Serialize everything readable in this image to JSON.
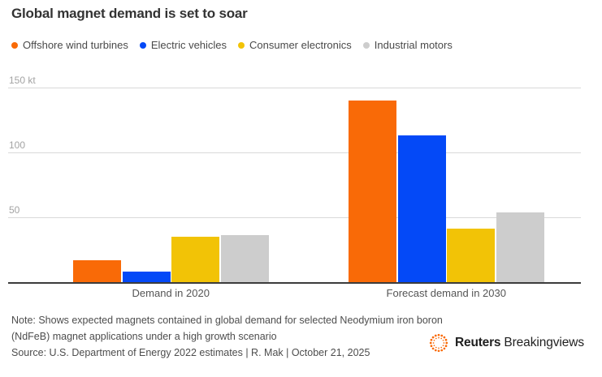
{
  "title": "Global magnet demand is set to soar",
  "legend": [
    {
      "label": "Offshore wind turbines",
      "color": "#f96a07"
    },
    {
      "label": "Electric vehicles",
      "color": "#0449f7"
    },
    {
      "label": "Consumer electronics",
      "color": "#f2c306"
    },
    {
      "label": "Industrial motors",
      "color": "#cdcdcd"
    }
  ],
  "chart_data": {
    "type": "bar",
    "unit": "kt",
    "title": "Global magnet demand is set to soar",
    "categories": [
      "Demand in 2020",
      "Forecast demand in 2030"
    ],
    "series": [
      {
        "name": "Offshore wind turbines",
        "color": "#f96a07",
        "values": [
          17,
          140
        ]
      },
      {
        "name": "Electric vehicles",
        "color": "#0449f7",
        "values": [
          8,
          113
        ]
      },
      {
        "name": "Consumer electronics",
        "color": "#f2c306",
        "values": [
          35,
          41
        ]
      },
      {
        "name": "Industrial motors",
        "color": "#cdcdcd",
        "values": [
          36,
          54
        ]
      }
    ],
    "yticks": [
      {
        "value": 150,
        "label": "150 kt"
      },
      {
        "value": 100,
        "label": "100"
      },
      {
        "value": 50,
        "label": "50"
      }
    ],
    "ylim": [
      0,
      160
    ],
    "grid": true,
    "legend_position": "top"
  },
  "footer": {
    "note_lines": [
      "Note: Shows expected magnets contained in global demand for selected Neodymium iron boron",
      "(NdFeB) magnet applications under a high growth scenario"
    ],
    "source": "Source: U.S. Department of Energy 2022 estimates | R. Mak | October 21, 2025"
  },
  "branding": {
    "brand_bold": "Reuters",
    "brand_regular": "Breakingviews",
    "logo_color": "#f96a07"
  },
  "colors": {
    "background": "#ffffff",
    "gridline": "#d9d9d9",
    "axis_line": "#3c3c3c",
    "title_text": "#333333",
    "tick_text": "#a3a3a3",
    "footer_text": "#4d4d4d"
  }
}
